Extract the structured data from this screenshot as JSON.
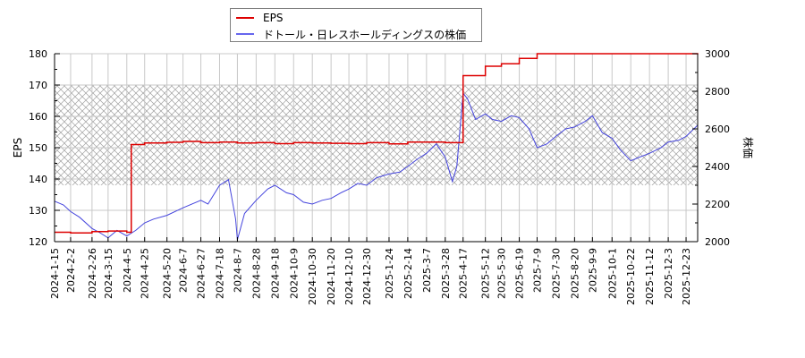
{
  "chart_data": {
    "type": "line",
    "title": "",
    "legend": {
      "position": "top-center",
      "entries": [
        {
          "label": "EPS",
          "color": "#dd0000"
        },
        {
          "label": "ドトール・日レスホールディングスの株価",
          "color": "#4444dd"
        }
      ]
    },
    "xlabel": "",
    "ylabel_left": "EPS",
    "ylabel_right": "株価",
    "ylim_left": [
      120,
      180
    ],
    "ylim_right": [
      2000,
      3000
    ],
    "yticks_left": [
      120,
      130,
      140,
      150,
      160,
      170,
      180
    ],
    "yticks_right": [
      2000,
      2200,
      2400,
      2600,
      2800,
      3000
    ],
    "xticks": [
      "2024-1-15",
      "2024-2-2",
      "2024-2-26",
      "2024-3-15",
      "2024-4-5",
      "2024-4-25",
      "2024-5-20",
      "2024-6-7",
      "2024-6-27",
      "2024-7-18",
      "2024-8-7",
      "2024-8-28",
      "2024-9-18",
      "2024-10-9",
      "2024-10-30",
      "2024-11-20",
      "2024-12-10",
      "2024-12-30",
      "2025-1-24",
      "2025-2-14",
      "2025-3-7",
      "2025-3-28",
      "2025-4-17",
      "2025-5-12",
      "2025-5-30",
      "2025-6-19",
      "2025-7-9",
      "2025-7-30",
      "2025-8-20",
      "2025-9-9",
      "2025-10-1",
      "2025-10-22",
      "2025-11-12",
      "2025-12-3",
      "2025-12-23"
    ],
    "grid": true,
    "shaded_band": {
      "eps_range": [
        138,
        170
      ],
      "pattern": "crosshatch"
    },
    "series": [
      {
        "name": "EPS",
        "axis": "left",
        "color": "#dd0000",
        "x": [
          "2024-1-15",
          "2024-2-2",
          "2024-2-26",
          "2024-3-15",
          "2024-4-5",
          "2024-4-10",
          "2024-4-25",
          "2024-5-20",
          "2024-6-7",
          "2024-6-27",
          "2024-7-18",
          "2024-8-7",
          "2024-8-28",
          "2024-9-18",
          "2024-10-9",
          "2024-10-30",
          "2024-11-20",
          "2024-12-10",
          "2024-12-30",
          "2025-1-24",
          "2025-2-14",
          "2025-3-7",
          "2025-3-28",
          "2025-4-10",
          "2025-4-17",
          "2025-5-5",
          "2025-5-12",
          "2025-5-30",
          "2025-6-19",
          "2025-7-9",
          "2025-7-30",
          "2025-8-20",
          "2025-9-9",
          "2025-10-1",
          "2025-10-22",
          "2025-11-12",
          "2025-12-3",
          "2025-12-23",
          "2026-1-5"
        ],
        "values": [
          123.0,
          122.8,
          123.2,
          123.4,
          123.0,
          151.0,
          151.5,
          151.7,
          152.0,
          151.6,
          151.8,
          151.5,
          151.6,
          151.3,
          151.6,
          151.5,
          151.4,
          151.3,
          151.6,
          151.2,
          151.8,
          151.8,
          151.6,
          151.6,
          173.0,
          173.0,
          176.0,
          176.8,
          178.5,
          180.8,
          180.5,
          180.7,
          180.6,
          180.5,
          180.4,
          180.2,
          180.5,
          180.3,
          179.8
        ]
      },
      {
        "name": "ドトール・日レスホールディングスの株価",
        "axis": "right",
        "color": "#4444dd",
        "x": [
          "2024-1-15",
          "2024-1-25",
          "2024-2-2",
          "2024-2-12",
          "2024-2-26",
          "2024-3-5",
          "2024-3-15",
          "2024-3-25",
          "2024-4-5",
          "2024-4-15",
          "2024-4-25",
          "2024-5-5",
          "2024-5-20",
          "2024-6-7",
          "2024-6-27",
          "2024-7-5",
          "2024-7-18",
          "2024-7-28",
          "2024-8-5",
          "2024-8-7",
          "2024-8-15",
          "2024-8-28",
          "2024-9-10",
          "2024-9-18",
          "2024-10-1",
          "2024-10-9",
          "2024-10-20",
          "2024-10-30",
          "2024-11-10",
          "2024-11-20",
          "2024-12-1",
          "2024-12-10",
          "2024-12-20",
          "2024-12-30",
          "2025-1-10",
          "2025-1-24",
          "2025-2-5",
          "2025-2-14",
          "2025-2-25",
          "2025-3-7",
          "2025-3-18",
          "2025-3-28",
          "2025-4-5",
          "2025-4-10",
          "2025-4-17",
          "2025-4-22",
          "2025-5-1",
          "2025-5-12",
          "2025-5-20",
          "2025-5-30",
          "2025-6-10",
          "2025-6-19",
          "2025-6-30",
          "2025-7-9",
          "2025-7-20",
          "2025-7-30",
          "2025-8-10",
          "2025-8-20",
          "2025-9-1",
          "2025-9-9",
          "2025-9-20",
          "2025-10-1",
          "2025-10-10",
          "2025-10-22",
          "2025-11-1",
          "2025-11-12",
          "2025-11-25",
          "2025-12-3",
          "2025-12-15",
          "2025-12-23",
          "2026-1-5"
        ],
        "values": [
          2215,
          2195,
          2160,
          2130,
          2070,
          2050,
          2020,
          2060,
          2030,
          2060,
          2100,
          2120,
          2140,
          2180,
          2220,
          2200,
          2300,
          2330,
          2120,
          2010,
          2150,
          2220,
          2280,
          2300,
          2260,
          2250,
          2210,
          2200,
          2220,
          2230,
          2260,
          2280,
          2310,
          2300,
          2340,
          2360,
          2370,
          2400,
          2440,
          2470,
          2520,
          2450,
          2320,
          2400,
          2790,
          2760,
          2650,
          2680,
          2650,
          2640,
          2670,
          2660,
          2600,
          2500,
          2520,
          2560,
          2600,
          2610,
          2640,
          2670,
          2580,
          2550,
          2490,
          2430,
          2450,
          2470,
          2500,
          2530,
          2540,
          2560,
          2620
        ]
      }
    ]
  }
}
